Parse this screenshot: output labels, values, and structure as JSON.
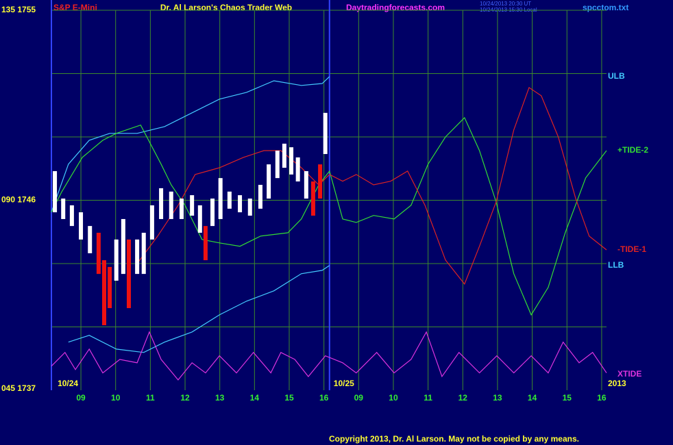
{
  "chart_data": {
    "type": "line",
    "title": "Dr. Al Larson's Chaos Trader Web",
    "instrument": "S&P E-Mini",
    "website": "Daytradingforecasts.com",
    "timestamps": [
      "10/24/2013 20:30 UT",
      "10/24/2013 15:30 Local"
    ],
    "file": "spcctom.txt",
    "dates": [
      {
        "x": 8.25,
        "label": "10/24"
      },
      {
        "x": 16.2,
        "label": "10/25"
      },
      {
        "x": 24.14,
        "label": "2013"
      }
    ],
    "copyright": "Copyright 2013, Dr. Al Larson. May not be copied by any means.",
    "xlim": [
      8.15,
      24.14
    ],
    "ylim": [
      1737,
      1755
    ],
    "xticks": [
      {
        "value": 9,
        "label": "09"
      },
      10,
      11,
      12,
      13,
      14,
      15,
      16,
      {
        "value": 17,
        "label": "09"
      },
      {
        "value": 18,
        "label": "10"
      },
      {
        "value": 19,
        "label": "11"
      },
      {
        "value": 20,
        "label": "12"
      },
      {
        "value": 21,
        "label": "13"
      },
      {
        "value": 22,
        "label": "14"
      },
      {
        "value": 23,
        "label": "15"
      },
      {
        "value": 24,
        "label": "16"
      }
    ],
    "yticks": [
      {
        "value": 1755,
        "label": "135 1755"
      },
      {
        "value": 1746,
        "label": "090 1746"
      },
      {
        "value": 1737,
        "label": "045 1737"
      }
    ],
    "ygrid": [
      1740,
      1743,
      1746,
      1749,
      1752,
      1755
    ],
    "grid": true,
    "current_x": 16.16,
    "bars": {
      "x": [
        8.25,
        8.49,
        8.74,
        9.0,
        9.26,
        9.51,
        9.67,
        9.83,
        10.02,
        10.22,
        10.38,
        10.62,
        10.81,
        11.05,
        11.31,
        11.6,
        11.9,
        12.2,
        12.43,
        12.59,
        12.79,
        13.02,
        13.28,
        13.58,
        13.87,
        14.17,
        14.41,
        14.66,
        14.86,
        15.06,
        15.25,
        15.49,
        15.69,
        15.89,
        16.04
      ],
      "low": [
        1745.43,
        1745.11,
        1744.78,
        1744.14,
        1743.49,
        1742.51,
        1740.08,
        1740.89,
        1742.19,
        1742.51,
        1740.89,
        1742.51,
        1742.51,
        1744.14,
        1745.11,
        1745.11,
        1745.11,
        1745.27,
        1744.46,
        1743.16,
        1744.78,
        1745.11,
        1745.6,
        1745.43,
        1745.27,
        1745.6,
        1746.08,
        1747.05,
        1747.54,
        1747.22,
        1746.89,
        1746.08,
        1745.27,
        1746.08,
        1748.19
      ],
      "high": [
        1747.38,
        1746.08,
        1745.76,
        1745.43,
        1744.78,
        1744.46,
        1743.16,
        1742.84,
        1744.14,
        1745.11,
        1744.14,
        1744.14,
        1744.46,
        1745.76,
        1746.57,
        1746.41,
        1746.08,
        1746.24,
        1745.76,
        1744.78,
        1746.08,
        1747.05,
        1746.41,
        1746.24,
        1746.08,
        1746.73,
        1747.7,
        1748.35,
        1748.68,
        1748.51,
        1748.03,
        1747.38,
        1746.89,
        1747.7,
        1750.14
      ],
      "colors": [
        "#ffffff",
        "#ffffff",
        "#ffffff",
        "#ffffff",
        "#ffffff",
        "#ee1111",
        "#ee1111",
        "#ee1111",
        "#ffffff",
        "#ffffff",
        "#ee1111",
        "#ffffff",
        "#ffffff",
        "#ffffff",
        "#ffffff",
        "#ffffff",
        "#ffffff",
        "#ffffff",
        "#ffffff",
        "#ee1111",
        "#ffffff",
        "#ffffff",
        "#ffffff",
        "#ffffff",
        "#ffffff",
        "#ffffff",
        "#ffffff",
        "#ffffff",
        "#ffffff",
        "#ffffff",
        "#ffffff",
        "#ffffff",
        "#ee1111",
        "#ee1111",
        "#ffffff"
      ]
    },
    "series": [
      {
        "name": "ULB",
        "color": "#44ccff",
        "x": [
          8.15,
          8.64,
          9.24,
          9.83,
          10.62,
          11.41,
          12.2,
          12.99,
          13.77,
          14.56,
          15.35,
          15.95,
          16.16
        ],
        "values": [
          1745.44,
          1747.71,
          1748.84,
          1749.17,
          1749.17,
          1749.49,
          1750.14,
          1750.79,
          1751.11,
          1751.66,
          1751.44,
          1751.53,
          1751.86
        ]
      },
      {
        "name": "+TIDE-2",
        "color": "#33dd33",
        "x": [
          8.15,
          8.45,
          9.04,
          9.63,
          10.02,
          10.72,
          11.31,
          11.6,
          12.0,
          12.49,
          12.99,
          13.58,
          14.17,
          14.96,
          15.35,
          15.85,
          16.16,
          16.54,
          16.93,
          17.43,
          18.02,
          18.51,
          19.0,
          19.5,
          20.05,
          20.48,
          20.96,
          21.47,
          21.97,
          22.46,
          22.95,
          23.54,
          24.14
        ],
        "values": [
          1745.44,
          1746.41,
          1748.03,
          1748.84,
          1749.17,
          1749.56,
          1747.71,
          1746.73,
          1745.76,
          1744.14,
          1743.98,
          1743.82,
          1744.3,
          1744.46,
          1745.11,
          1746.73,
          1747.38,
          1745.11,
          1744.95,
          1745.28,
          1745.11,
          1745.76,
          1747.71,
          1749.0,
          1749.91,
          1748.35,
          1745.92,
          1742.52,
          1740.57,
          1741.87,
          1744.46,
          1747.06,
          1748.35
        ]
      },
      {
        "name": "-TIDE-1",
        "color": "#dd2222",
        "x": [
          10.62,
          11.21,
          11.8,
          12.29,
          12.99,
          13.68,
          14.27,
          14.76,
          15.35,
          15.85,
          16.16,
          16.54,
          16.93,
          17.43,
          17.92,
          18.41,
          18.91,
          19.5,
          20.05,
          20.48,
          20.96,
          21.47,
          21.91,
          22.26,
          22.75,
          23.25,
          23.64,
          24.14
        ],
        "values": [
          1743.0,
          1744.3,
          1745.76,
          1747.22,
          1747.54,
          1748.03,
          1748.35,
          1748.35,
          1747.54,
          1746.73,
          1747.22,
          1746.9,
          1747.22,
          1746.73,
          1746.9,
          1747.38,
          1745.76,
          1743.17,
          1742.03,
          1743.82,
          1745.92,
          1749.33,
          1751.34,
          1750.95,
          1749.0,
          1746.09,
          1744.3,
          1743.65
        ]
      },
      {
        "name": "LLB",
        "color": "#44ccff",
        "x": [
          8.64,
          9.24,
          10.02,
          10.81,
          11.41,
          12.2,
          12.99,
          13.77,
          14.56,
          15.35,
          15.95,
          16.16
        ],
        "values": [
          1739.28,
          1739.6,
          1738.95,
          1738.79,
          1739.28,
          1739.76,
          1740.57,
          1741.22,
          1741.71,
          1742.52,
          1742.68,
          1742.91
        ]
      },
      {
        "name": "XTIDE",
        "color": "#dd33dd",
        "x": [
          8.15,
          8.54,
          8.84,
          9.24,
          9.63,
          10.12,
          10.62,
          10.97,
          11.31,
          11.8,
          12.2,
          12.59,
          12.99,
          13.48,
          13.97,
          14.47,
          14.76,
          15.16,
          15.55,
          16.04,
          16.54,
          16.93,
          17.52,
          18.02,
          18.51,
          18.95,
          19.4,
          19.89,
          20.48,
          20.98,
          21.47,
          21.97,
          22.46,
          22.89,
          23.35,
          23.74,
          24.14
        ],
        "values": [
          1738.14,
          1738.79,
          1737.98,
          1738.95,
          1737.82,
          1738.46,
          1738.3,
          1739.76,
          1738.46,
          1737.49,
          1738.3,
          1737.82,
          1738.63,
          1737.82,
          1738.79,
          1737.82,
          1738.79,
          1738.46,
          1737.65,
          1738.63,
          1738.3,
          1737.82,
          1738.79,
          1737.82,
          1738.46,
          1739.76,
          1737.65,
          1738.79,
          1737.82,
          1738.63,
          1737.82,
          1738.63,
          1737.82,
          1739.28,
          1738.3,
          1738.79,
          1737.82
        ]
      }
    ]
  }
}
